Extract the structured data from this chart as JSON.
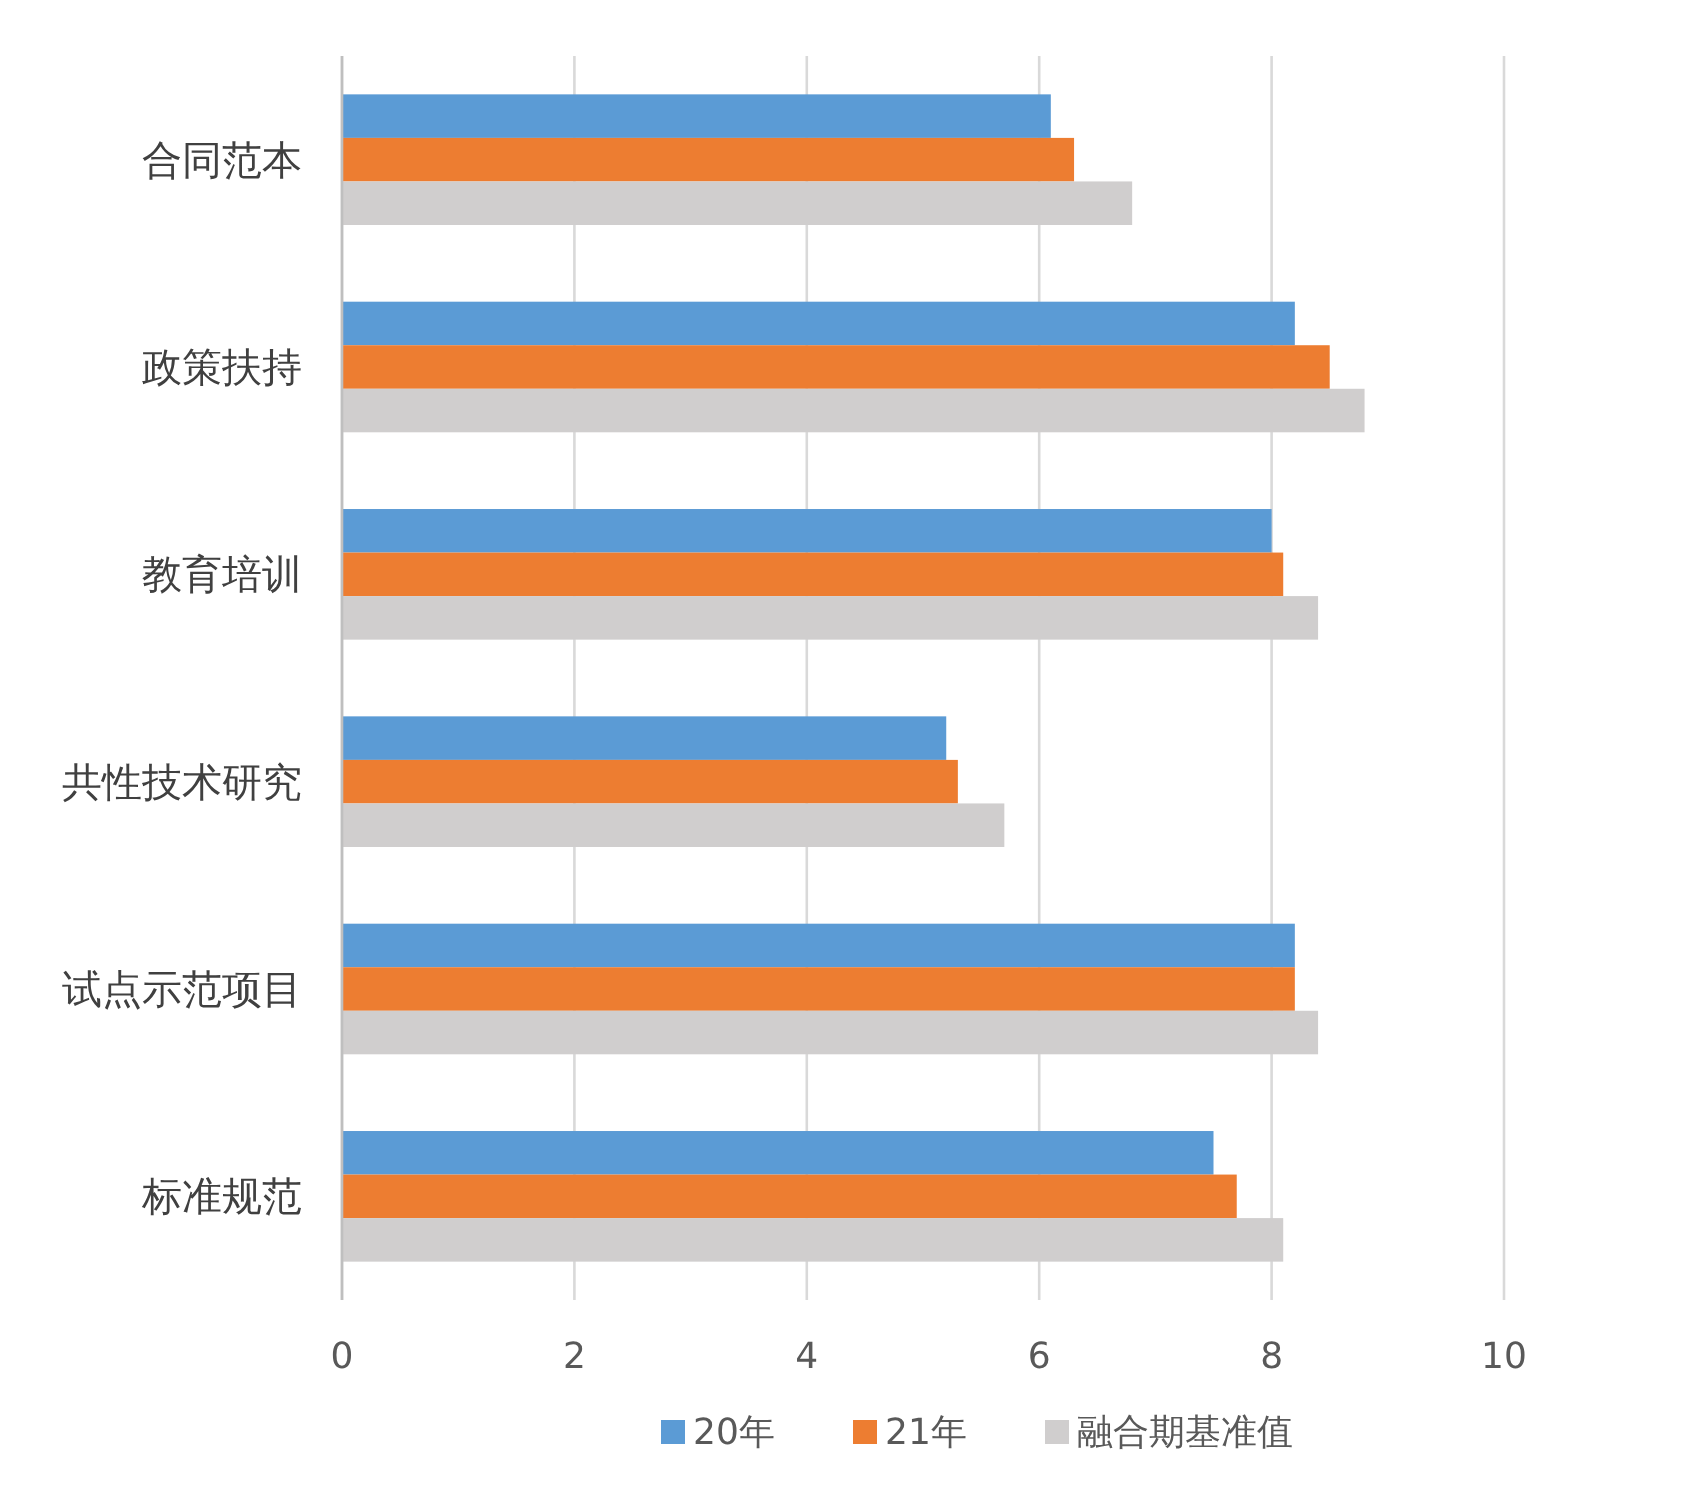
{
  "chart_data": {
    "type": "bar",
    "orientation": "horizontal",
    "categories": [
      "合同范本",
      "政策扶持",
      "教育培训",
      "共性技术研究",
      "试点示范项目",
      "标准规范"
    ],
    "series": [
      {
        "name": "20年",
        "color": "#5b9bd5",
        "values": [
          6.1,
          8.2,
          8.0,
          5.2,
          8.2,
          7.5
        ]
      },
      {
        "name": "21年",
        "color": "#ed7d31",
        "values": [
          6.3,
          8.5,
          8.1,
          5.3,
          8.2,
          7.7
        ]
      },
      {
        "name": "融合期基准值",
        "color": "#d0cece",
        "values": [
          6.8,
          8.8,
          8.4,
          5.7,
          8.4,
          8.1
        ]
      }
    ],
    "xlim": [
      0,
      10
    ],
    "xticks": [
      0,
      2,
      4,
      6,
      8,
      10
    ],
    "grid": "x",
    "legend": "bottom"
  }
}
